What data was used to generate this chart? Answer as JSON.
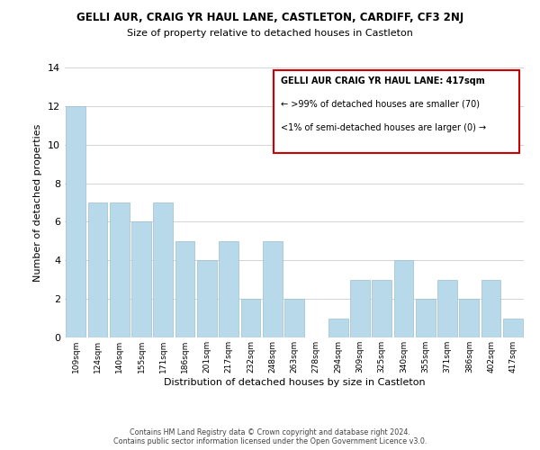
{
  "title": "GELLI AUR, CRAIG YR HAUL LANE, CASTLETON, CARDIFF, CF3 2NJ",
  "subtitle": "Size of property relative to detached houses in Castleton",
  "xlabel": "Distribution of detached houses by size in Castleton",
  "ylabel": "Number of detached properties",
  "bar_color": "#b8d9ea",
  "bar_edge_color": "#9bbfce",
  "categories": [
    "109sqm",
    "124sqm",
    "140sqm",
    "155sqm",
    "171sqm",
    "186sqm",
    "201sqm",
    "217sqm",
    "232sqm",
    "248sqm",
    "263sqm",
    "278sqm",
    "294sqm",
    "309sqm",
    "325sqm",
    "340sqm",
    "355sqm",
    "371sqm",
    "386sqm",
    "402sqm",
    "417sqm"
  ],
  "values": [
    12,
    7,
    7,
    6,
    7,
    5,
    4,
    5,
    2,
    5,
    2,
    0,
    1,
    3,
    3,
    4,
    2,
    3,
    2,
    3,
    1
  ],
  "ylim": [
    0,
    14
  ],
  "yticks": [
    0,
    2,
    4,
    6,
    8,
    10,
    12,
    14
  ],
  "annotation_line1": "GELLI AUR CRAIG YR HAUL LANE: 417sqm",
  "annotation_line2": "← >99% of detached houses are smaller (70)",
  "annotation_line3": "<1% of semi-detached houses are larger (0) →",
  "annotation_box_color": "#cc0000",
  "footer_line1": "Contains HM Land Registry data © Crown copyright and database right 2024.",
  "footer_line2": "Contains public sector information licensed under the Open Government Licence v3.0.",
  "grid_color": "#cccccc",
  "background_color": "#ffffff"
}
